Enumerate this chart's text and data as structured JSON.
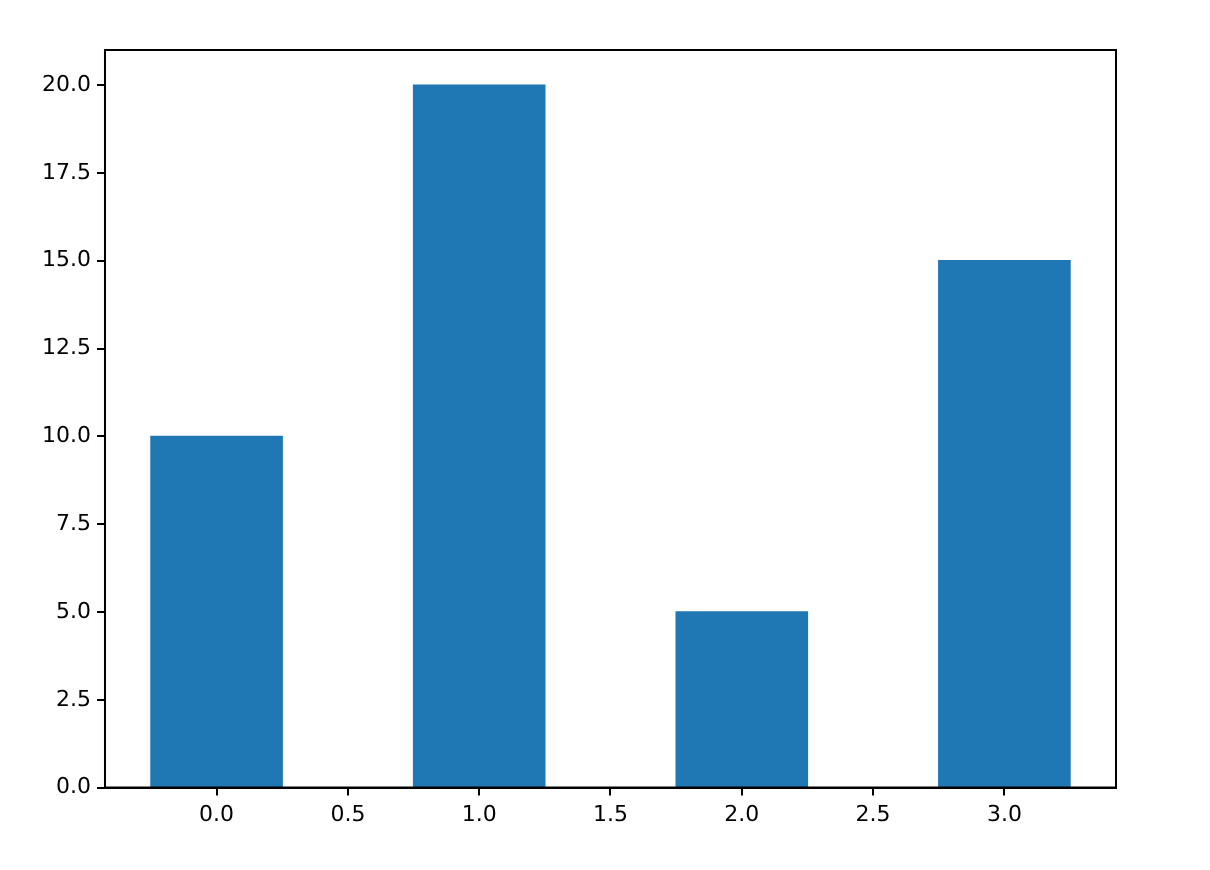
{
  "chart_data": {
    "type": "bar",
    "x": [
      0,
      1,
      2,
      3
    ],
    "values": [
      10,
      20,
      5,
      15
    ],
    "color": "#1f77b4",
    "xlim": [
      -0.425,
      3.425
    ],
    "xticks": [
      {
        "value": 0,
        "label": "0.0"
      },
      0.5,
      {
        "value": 1,
        "label": "1.0"
      },
      1.5,
      {
        "value": 2,
        "label": "2.0"
      },
      2.5,
      {
        "value": 3,
        "label": "3.0"
      }
    ],
    "ylim": [
      0,
      21
    ],
    "yticks": [
      {
        "value": 0,
        "label": "0.0"
      },
      2.5,
      {
        "value": 5,
        "label": "5.0"
      },
      7.5,
      {
        "value": 10,
        "label": "10.0"
      },
      12.5,
      {
        "value": 15,
        "label": "15.0"
      },
      17.5,
      {
        "value": 20,
        "label": "20.0"
      }
    ]
  }
}
